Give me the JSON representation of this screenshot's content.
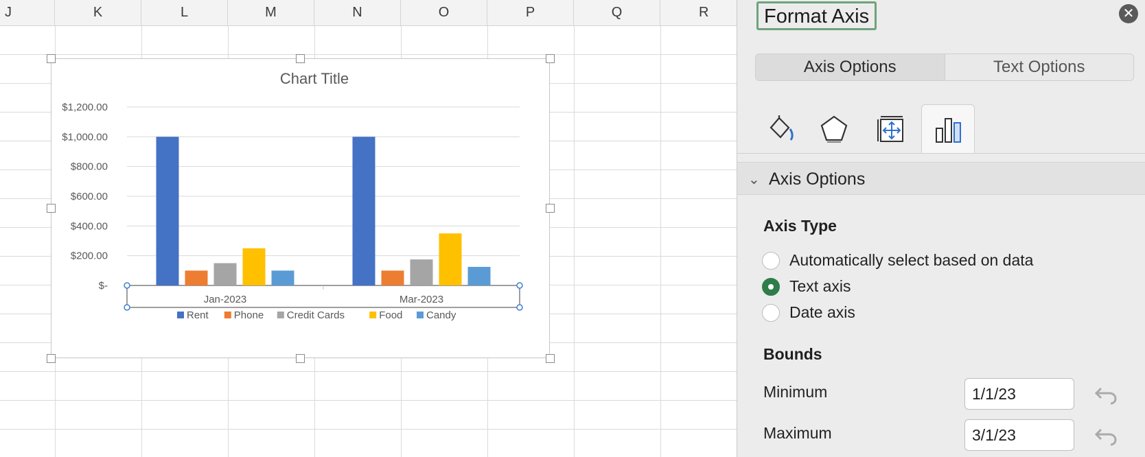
{
  "sheet": {
    "columns": [
      "J",
      "K",
      "L",
      "M",
      "N",
      "O",
      "P",
      "Q",
      "R"
    ]
  },
  "chart_data": {
    "type": "bar",
    "title": "Chart Title",
    "categories": [
      "Jan-2023",
      "Mar-2023"
    ],
    "series": [
      {
        "name": "Rent",
        "values": [
          1000,
          1000
        ],
        "color": "#4472C4"
      },
      {
        "name": "Phone",
        "values": [
          100,
          100
        ],
        "color": "#ED7D31"
      },
      {
        "name": "Credit Cards",
        "values": [
          150,
          175
        ],
        "color": "#A5A5A5"
      },
      {
        "name": "Food",
        "values": [
          250,
          350
        ],
        "color": "#FFC000"
      },
      {
        "name": "Candy",
        "values": [
          100,
          125
        ],
        "color": "#5B9BD5"
      }
    ],
    "ylim": [
      0,
      1200
    ],
    "yticks": [
      0,
      200,
      400,
      600,
      800,
      1000,
      1200
    ],
    "ytick_labels": [
      "$-",
      "$200.00",
      "$400.00",
      "$600.00",
      "$800.00",
      "$1,000.00",
      "$1,200.00"
    ],
    "grid": true,
    "legend": "bottom"
  },
  "panel": {
    "title": "Format Axis",
    "close_glyph": "✕",
    "tabs": [
      "Axis Options",
      "Text Options"
    ],
    "icon_tabs": [
      "fill-line-icon",
      "effects-icon",
      "size-properties-icon",
      "axis-options-icon"
    ],
    "section_title": "Axis Options",
    "axis_type_label": "Axis Type",
    "axis_type_options": [
      "Automatically select based on data",
      "Text axis",
      "Date axis"
    ],
    "axis_type_selected": "Text axis",
    "bounds_label": "Bounds",
    "minimum_label": "Minimum",
    "minimum_value": "1/1/23",
    "maximum_label": "Maximum",
    "maximum_value": "3/1/23"
  }
}
